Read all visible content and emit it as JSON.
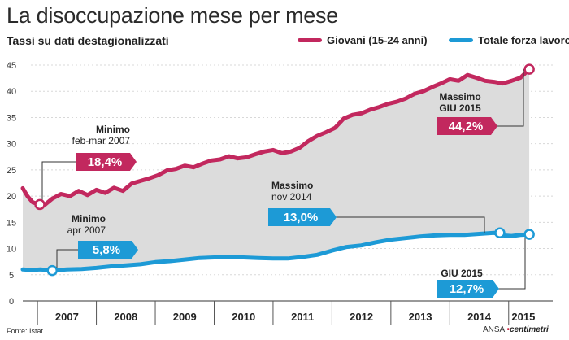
{
  "title": "La disoccupazione mese per mese",
  "subtitle": "Tassi su dati destagionalizzati",
  "source": "Fonte: Istat",
  "credit": {
    "agency": "ANSA",
    "brand": "centimetri"
  },
  "colors": {
    "youth": "#c2285e",
    "total": "#1d9ad6",
    "band": "#dcdcdc",
    "grid": "#d8d8d8",
    "axis": "#333333"
  },
  "chart_data": {
    "type": "line",
    "title": "La disoccupazione mese per mese",
    "subtitle": "Tassi su dati destagionalizzati",
    "ylim": [
      0,
      45
    ],
    "yticks": [
      0,
      5,
      10,
      15,
      20,
      25,
      30,
      35,
      40,
      45
    ],
    "x_start": 2006.75,
    "x_end": 2015.5,
    "x_categories": [
      "2007",
      "2008",
      "2009",
      "2010",
      "2011",
      "2012",
      "2013",
      "2014",
      "2015"
    ],
    "series": [
      {
        "name": "Giovani (15-24 anni)",
        "key": "youth",
        "points": [
          [
            2006.75,
            21.5
          ],
          [
            2006.83,
            20.0
          ],
          [
            2006.92,
            18.8
          ],
          [
            2007.04,
            18.4
          ],
          [
            2007.13,
            18.4
          ],
          [
            2007.25,
            19.5
          ],
          [
            2007.4,
            20.4
          ],
          [
            2007.55,
            20.0
          ],
          [
            2007.7,
            21.0
          ],
          [
            2007.85,
            20.2
          ],
          [
            2008.0,
            21.2
          ],
          [
            2008.15,
            20.6
          ],
          [
            2008.3,
            21.6
          ],
          [
            2008.45,
            21.0
          ],
          [
            2008.6,
            22.4
          ],
          [
            2008.75,
            22.9
          ],
          [
            2008.9,
            23.4
          ],
          [
            2009.05,
            24.0
          ],
          [
            2009.2,
            24.9
          ],
          [
            2009.35,
            25.2
          ],
          [
            2009.5,
            25.8
          ],
          [
            2009.65,
            25.5
          ],
          [
            2009.8,
            26.2
          ],
          [
            2009.95,
            26.8
          ],
          [
            2010.1,
            27.0
          ],
          [
            2010.25,
            27.6
          ],
          [
            2010.4,
            27.2
          ],
          [
            2010.55,
            27.4
          ],
          [
            2010.7,
            28.0
          ],
          [
            2010.85,
            28.5
          ],
          [
            2011.0,
            28.8
          ],
          [
            2011.15,
            28.2
          ],
          [
            2011.3,
            28.5
          ],
          [
            2011.45,
            29.2
          ],
          [
            2011.6,
            30.5
          ],
          [
            2011.75,
            31.5
          ],
          [
            2011.9,
            32.2
          ],
          [
            2012.05,
            33.0
          ],
          [
            2012.2,
            34.8
          ],
          [
            2012.35,
            35.5
          ],
          [
            2012.5,
            35.8
          ],
          [
            2012.65,
            36.5
          ],
          [
            2012.8,
            37.0
          ],
          [
            2012.95,
            37.6
          ],
          [
            2013.1,
            38.0
          ],
          [
            2013.25,
            38.6
          ],
          [
            2013.4,
            39.5
          ],
          [
            2013.55,
            40.0
          ],
          [
            2013.7,
            40.8
          ],
          [
            2013.85,
            41.5
          ],
          [
            2014.0,
            42.3
          ],
          [
            2014.15,
            42.0
          ],
          [
            2014.3,
            43.1
          ],
          [
            2014.45,
            42.6
          ],
          [
            2014.6,
            42.0
          ],
          [
            2014.75,
            41.8
          ],
          [
            2014.9,
            41.5
          ],
          [
            2015.05,
            42.0
          ],
          [
            2015.2,
            42.6
          ],
          [
            2015.35,
            44.2
          ]
        ]
      },
      {
        "name": "Totale forza lavoro",
        "key": "total",
        "points": [
          [
            2006.75,
            6.0
          ],
          [
            2006.9,
            5.9
          ],
          [
            2007.05,
            6.0
          ],
          [
            2007.25,
            5.8
          ],
          [
            2007.5,
            6.0
          ],
          [
            2007.75,
            6.1
          ],
          [
            2008.0,
            6.3
          ],
          [
            2008.25,
            6.6
          ],
          [
            2008.5,
            6.8
          ],
          [
            2008.75,
            7.0
          ],
          [
            2009.0,
            7.4
          ],
          [
            2009.25,
            7.6
          ],
          [
            2009.5,
            7.9
          ],
          [
            2009.75,
            8.2
          ],
          [
            2010.0,
            8.3
          ],
          [
            2010.25,
            8.4
          ],
          [
            2010.5,
            8.3
          ],
          [
            2010.75,
            8.2
          ],
          [
            2011.0,
            8.1
          ],
          [
            2011.25,
            8.1
          ],
          [
            2011.5,
            8.4
          ],
          [
            2011.75,
            8.8
          ],
          [
            2012.0,
            9.6
          ],
          [
            2012.25,
            10.3
          ],
          [
            2012.5,
            10.6
          ],
          [
            2012.75,
            11.2
          ],
          [
            2013.0,
            11.7
          ],
          [
            2013.25,
            12.0
          ],
          [
            2013.5,
            12.3
          ],
          [
            2013.75,
            12.5
          ],
          [
            2014.0,
            12.6
          ],
          [
            2014.25,
            12.6
          ],
          [
            2014.5,
            12.8
          ],
          [
            2014.75,
            13.0
          ],
          [
            2014.9,
            12.5
          ],
          [
            2015.05,
            12.4
          ],
          [
            2015.2,
            12.6
          ],
          [
            2015.35,
            12.7
          ]
        ]
      }
    ],
    "annotations": [
      {
        "key": "youth_min",
        "series": "youth",
        "x": 2007.04,
        "y": 18.4,
        "lines": [
          "Minimo",
          "feb-mar 2007"
        ],
        "value": "18,4%"
      },
      {
        "key": "youth_max",
        "series": "youth",
        "x": 2015.35,
        "y": 44.2,
        "lines": [
          "Massimo",
          "GIU 2015"
        ],
        "value": "44,2%"
      },
      {
        "key": "total_min",
        "series": "total",
        "x": 2007.25,
        "y": 5.8,
        "lines": [
          "Minimo",
          "apr 2007"
        ],
        "value": "5,8%"
      },
      {
        "key": "total_max",
        "series": "total",
        "x": 2014.85,
        "y": 13.0,
        "lines": [
          "Massimo",
          "nov 2014"
        ],
        "value": "13,0%"
      },
      {
        "key": "total_last",
        "series": "total",
        "x": 2015.35,
        "y": 12.7,
        "lines": [
          "GIU 2015"
        ],
        "value": "12,7%"
      }
    ]
  }
}
